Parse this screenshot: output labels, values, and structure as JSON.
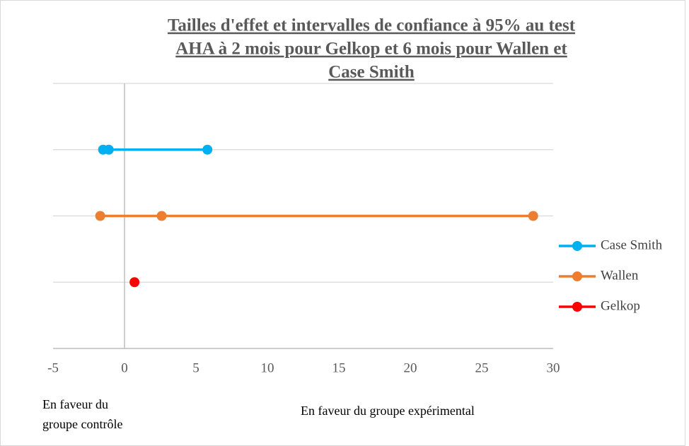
{
  "chart_data": {
    "type": "scatter-line",
    "title": [
      "Tailles d'effet et intervalles de confiance  à 95% au test",
      "AHA à 2 mois pour Gelkop et 6 mois pour Wallen et",
      "Case Smith"
    ],
    "series": [
      {
        "name": "Case Smith",
        "color": "#00b0f0",
        "x": [
          -1.5,
          -1.1,
          5.8
        ],
        "y": [
          3,
          3,
          3
        ]
      },
      {
        "name": "Wallen",
        "color": "#ed7d31",
        "x": [
          -1.7,
          2.6,
          28.6
        ],
        "y": [
          2,
          2,
          2
        ]
      },
      {
        "name": "Gelkop",
        "color": "#ff0000",
        "x": [
          0.7
        ],
        "y": [
          1
        ]
      }
    ],
    "xlim": [
      -5,
      30
    ],
    "xticks": [
      -5,
      0,
      5,
      10,
      15,
      20,
      25,
      30
    ],
    "ylim": [
      0,
      4
    ],
    "yticks": [
      0,
      1,
      2,
      3,
      4
    ],
    "grid": true,
    "legend": "right",
    "annotations": [
      "En faveur du groupe contrôle",
      "En faveur du groupe expérimental"
    ]
  }
}
